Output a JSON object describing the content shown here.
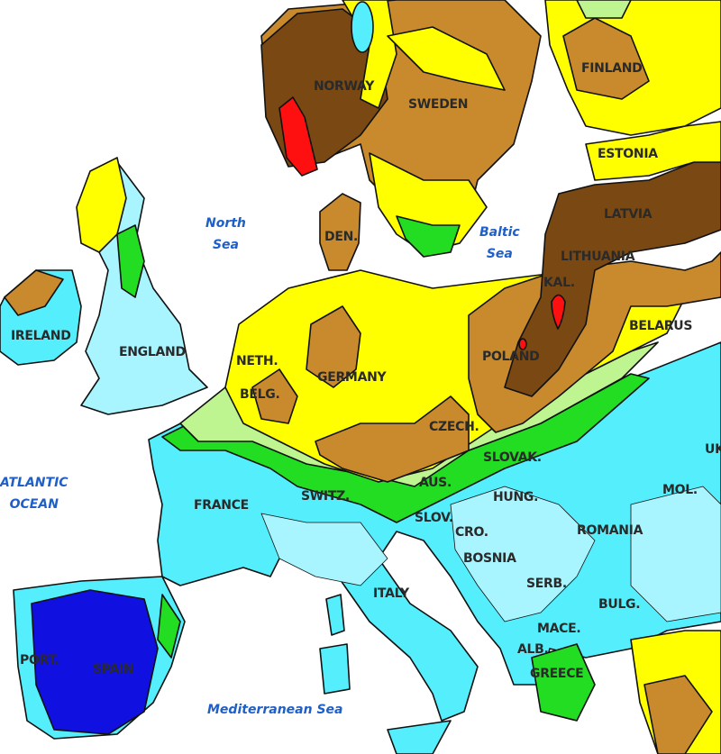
{
  "colors": {
    "sea": "#ffffff",
    "light_cyan": "#a8f4ff",
    "cyan": "#55eefc",
    "dark_blue": "#1010e0",
    "light_green": "#bff590",
    "green": "#22dd22",
    "yellow": "#ffff00",
    "light_brown": "#c88a2c",
    "dark_brown": "#7a4812",
    "red": "#ff1010"
  },
  "seas": {
    "north_sea": [
      "North",
      "Sea"
    ],
    "baltic_sea": [
      "Baltic",
      "Sea"
    ],
    "atlantic": [
      "ATLANTIC",
      "OCEAN"
    ],
    "mediterranean": "Mediterranean Sea"
  },
  "countries": {
    "finland": "FINLAND",
    "norway": "NORWAY",
    "sweden": "SWEDEN",
    "estonia": "ESTONIA",
    "latvia": "LATVIA",
    "lithuania": "LITHUANIA",
    "kaliningrad": "KAL.",
    "belarus": "BELARUS",
    "poland": "POLAND",
    "germany": "GERMANY",
    "netherlands": "NETH.",
    "belgium": "BELG.",
    "denmark": "DEN.",
    "ireland": "IRELAND",
    "england": "ENGLAND",
    "france": "FRANCE",
    "switzerland": "SWITZ.",
    "austria": "AUS.",
    "czech": "CZECH.",
    "slovakia": "SLOVAK.",
    "hungary": "HUNG.",
    "slovenia": "SLOV.",
    "croatia": "CRO.",
    "bosnia": "BOSNIA",
    "romania": "ROMANIA",
    "moldova": "MOL.",
    "ukraine": "UK",
    "serbia": "SERB.",
    "bulgaria": "BULG.",
    "macedonia": "MACE.",
    "albania": "ALB.",
    "greece": "GREECE",
    "italy": "ITALY",
    "portugal": "PORT.",
    "spain": "SPAIN"
  }
}
